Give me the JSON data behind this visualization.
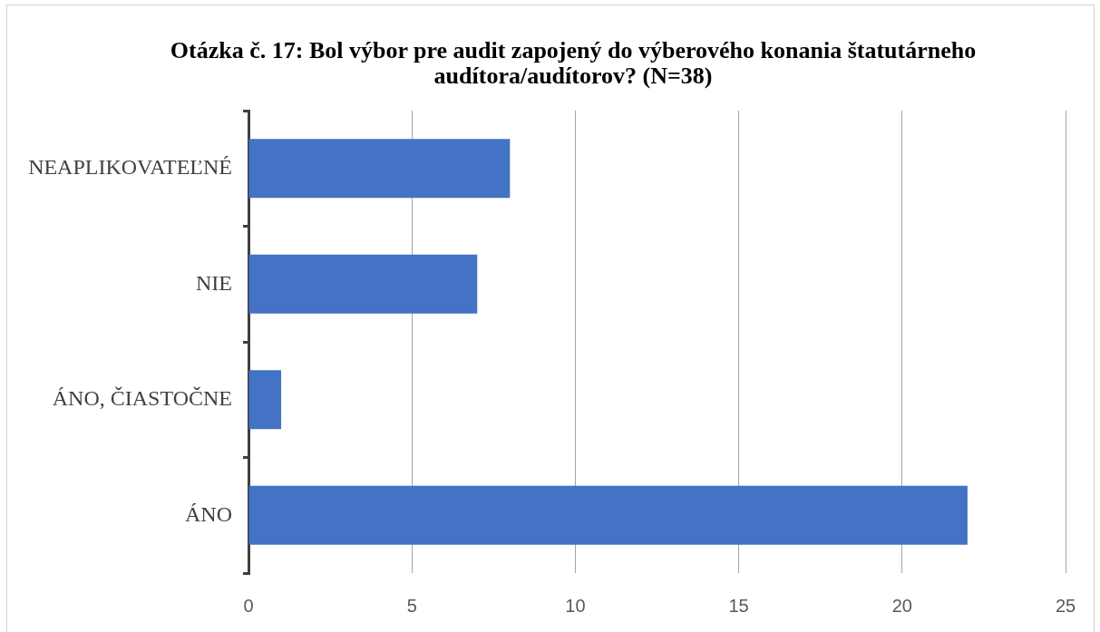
{
  "chart_data": {
    "type": "bar",
    "orientation": "horizontal",
    "title": "Otázka č. 17: Bol výbor pre audit zapojený do výberového konania štatutárneho audítora/audítorov? (N=38)",
    "categories": [
      "NEAPLIKOVATEĽNÉ",
      "NIE",
      "ÁNO, ČIASTOČNE",
      "ÁNO"
    ],
    "values": [
      8,
      7,
      1,
      22
    ],
    "color": "#4472c4",
    "xlim": [
      0,
      25
    ],
    "xticks": [
      0,
      5,
      10,
      15,
      20,
      25
    ],
    "grid": "x"
  }
}
